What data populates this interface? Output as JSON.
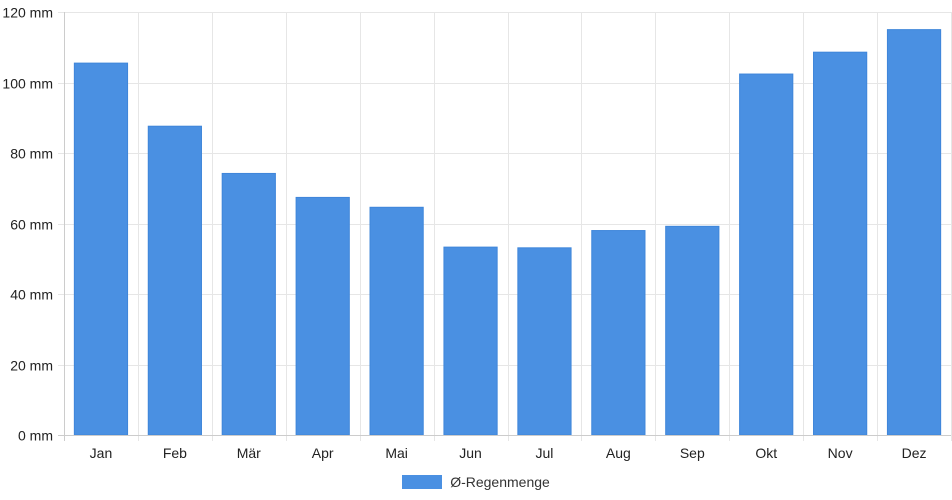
{
  "chart_data": {
    "type": "bar",
    "categories": [
      "Jan",
      "Feb",
      "Mär",
      "Apr",
      "Mai",
      "Jun",
      "Jul",
      "Aug",
      "Sep",
      "Okt",
      "Nov",
      "Dez"
    ],
    "series": [
      {
        "name": "Ø-Regenmenge",
        "values": [
          105.5,
          87.6,
          74.2,
          67.4,
          64.6,
          53.3,
          53.1,
          58.0,
          59.2,
          102.4,
          108.6,
          115.0
        ]
      }
    ],
    "y_ticks": [
      0,
      20,
      40,
      60,
      80,
      100,
      120
    ],
    "y_unit": "mm",
    "ylim": [
      0,
      120
    ],
    "grid": true,
    "legend_position": "bottom-center",
    "bar_color": "#4a90e2",
    "grid_color": "#e6e6e6",
    "axis_color": "#cccccc"
  },
  "legend": {
    "label": "Ø-Regenmenge"
  }
}
